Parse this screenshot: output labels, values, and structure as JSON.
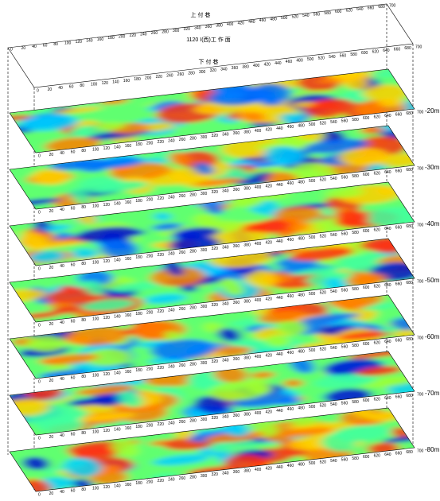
{
  "header": {
    "top_label": "上 付 巷",
    "title": "1120 I(西)工 作 面",
    "bottom_label": "下 付 巷"
  },
  "ticks": [
    0,
    20,
    40,
    60,
    80,
    100,
    120,
    140,
    160,
    180,
    200,
    220,
    240,
    260,
    280,
    300,
    320,
    340,
    360,
    380,
    400,
    420,
    440,
    460,
    480,
    500,
    520,
    540,
    560,
    580,
    600,
    620,
    640,
    660,
    680,
    700
  ],
  "slices": [
    {
      "depth": "-20m"
    },
    {
      "depth": "-30m"
    },
    {
      "depth": "-40m"
    },
    {
      "depth": "-50m"
    },
    {
      "depth": "-60m"
    },
    {
      "depth": "-70m"
    },
    {
      "depth": "-80m"
    }
  ]
}
